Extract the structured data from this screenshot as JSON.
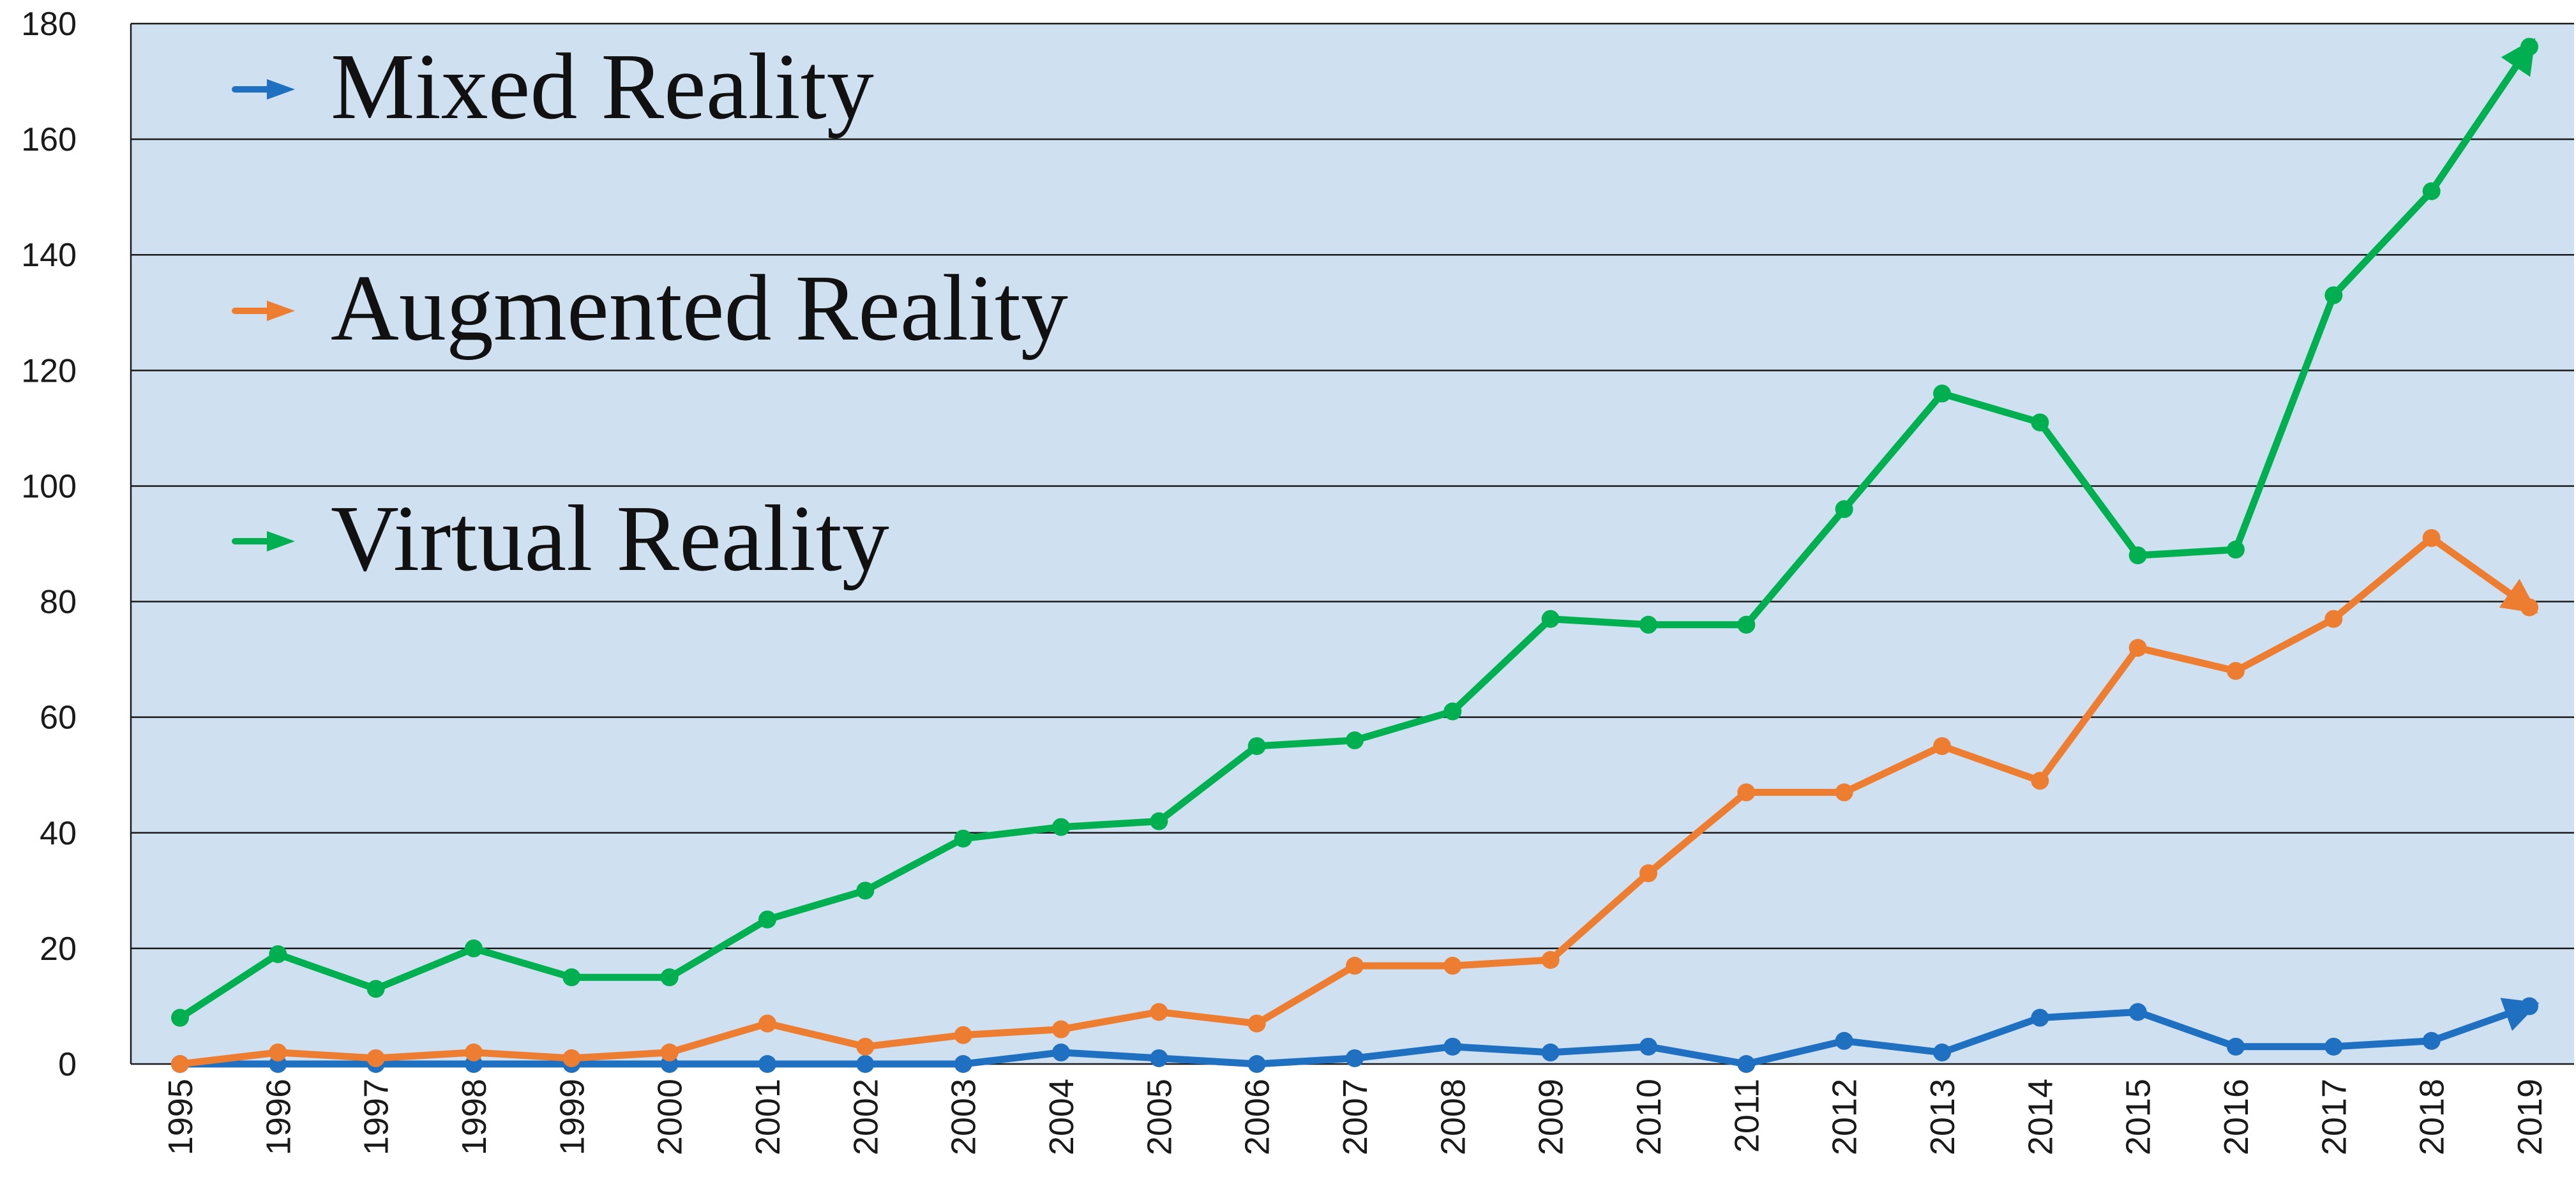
{
  "chart_data": {
    "type": "line",
    "title": "",
    "xlabel": "",
    "ylabel": "",
    "ylim": [
      0,
      180
    ],
    "yticks": [
      "0",
      "20",
      "40",
      "60",
      "80",
      "100",
      "120",
      "140",
      "160",
      "180"
    ],
    "categories": [
      "1995",
      "1996",
      "1997",
      "1998",
      "1999",
      "2000",
      "2001",
      "2002",
      "2003",
      "2004",
      "2005",
      "2006",
      "2007",
      "2008",
      "2009",
      "2010",
      "2011",
      "2012",
      "2013",
      "2014",
      "2015",
      "2016",
      "2017",
      "2018",
      "2019"
    ],
    "grid": true,
    "legend_position": "top-left",
    "background_color": "#cfe0f1",
    "series": [
      {
        "name": "Mixed Reality",
        "color": "#1f70c1",
        "values": [
          0,
          0,
          0,
          0,
          0,
          0,
          0,
          0,
          0,
          2,
          1,
          0,
          1,
          3,
          2,
          3,
          0,
          4,
          2,
          8,
          9,
          3,
          3,
          4,
          10
        ]
      },
      {
        "name": "Augmented Reality",
        "color": "#ed7d31",
        "values": [
          0,
          2,
          1,
          2,
          1,
          2,
          7,
          3,
          5,
          6,
          9,
          7,
          17,
          17,
          18,
          33,
          47,
          47,
          55,
          49,
          72,
          68,
          77,
          91,
          79
        ]
      },
      {
        "name": "Virtual Reality",
        "color": "#00b050",
        "values": [
          8,
          19,
          13,
          20,
          15,
          15,
          25,
          30,
          39,
          41,
          42,
          55,
          56,
          61,
          77,
          76,
          76,
          96,
          116,
          111,
          88,
          89,
          133,
          151,
          176
        ]
      }
    ]
  }
}
